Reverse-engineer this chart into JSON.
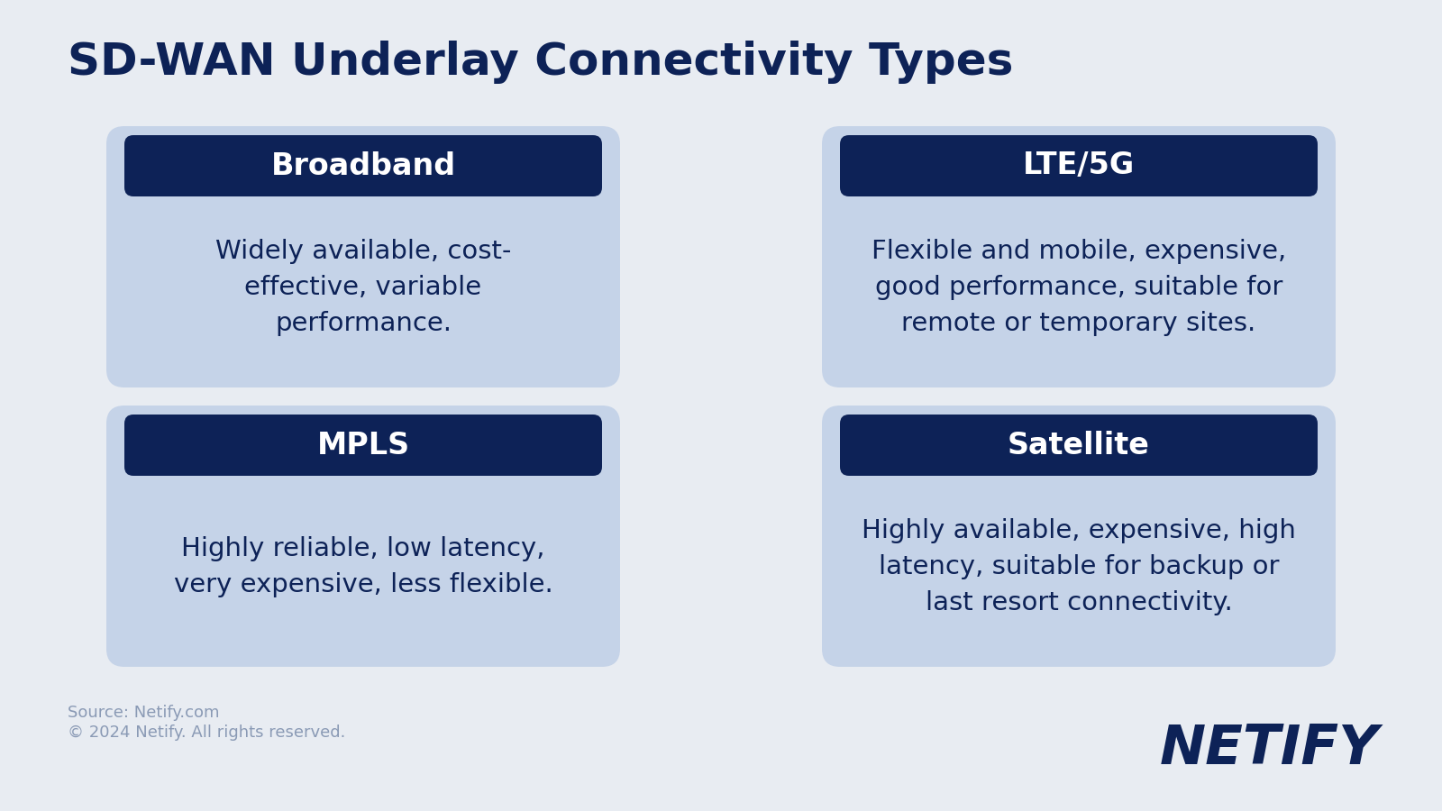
{
  "title": "SD-WAN Underlay Connectivity Types",
  "title_color": "#0d2257",
  "title_fontsize": 36,
  "background_color": "#e8ecf2",
  "card_bg_color": "#c5d3e8",
  "header_bg_color": "#0d2257",
  "header_text_color": "#ffffff",
  "body_text_color": "#0d2257",
  "cards": [
    {
      "title": "Broadband",
      "body": "Widely available, cost-\neffective, variable\nperformance.",
      "col": 0,
      "row": 0
    },
    {
      "title": "LTE/5G",
      "body": "Flexible and mobile, expensive,\ngood performance, suitable for\nremote or temporary sites.",
      "col": 1,
      "row": 0
    },
    {
      "title": "MPLS",
      "body": "Highly reliable, low latency,\nvery expensive, less flexible.",
      "col": 0,
      "row": 1
    },
    {
      "title": "Satellite",
      "body": "Highly available, expensive, high\nlatency, suitable for backup or\nlast resort connectivity.",
      "col": 1,
      "row": 1
    }
  ],
  "footer_source": "Source: Netify.com",
  "footer_copyright": "© 2024 Netify. All rights reserved.",
  "footer_text_color": "#8a9ab5",
  "brand_text": "NETIFY",
  "brand_color": "#0d2257"
}
